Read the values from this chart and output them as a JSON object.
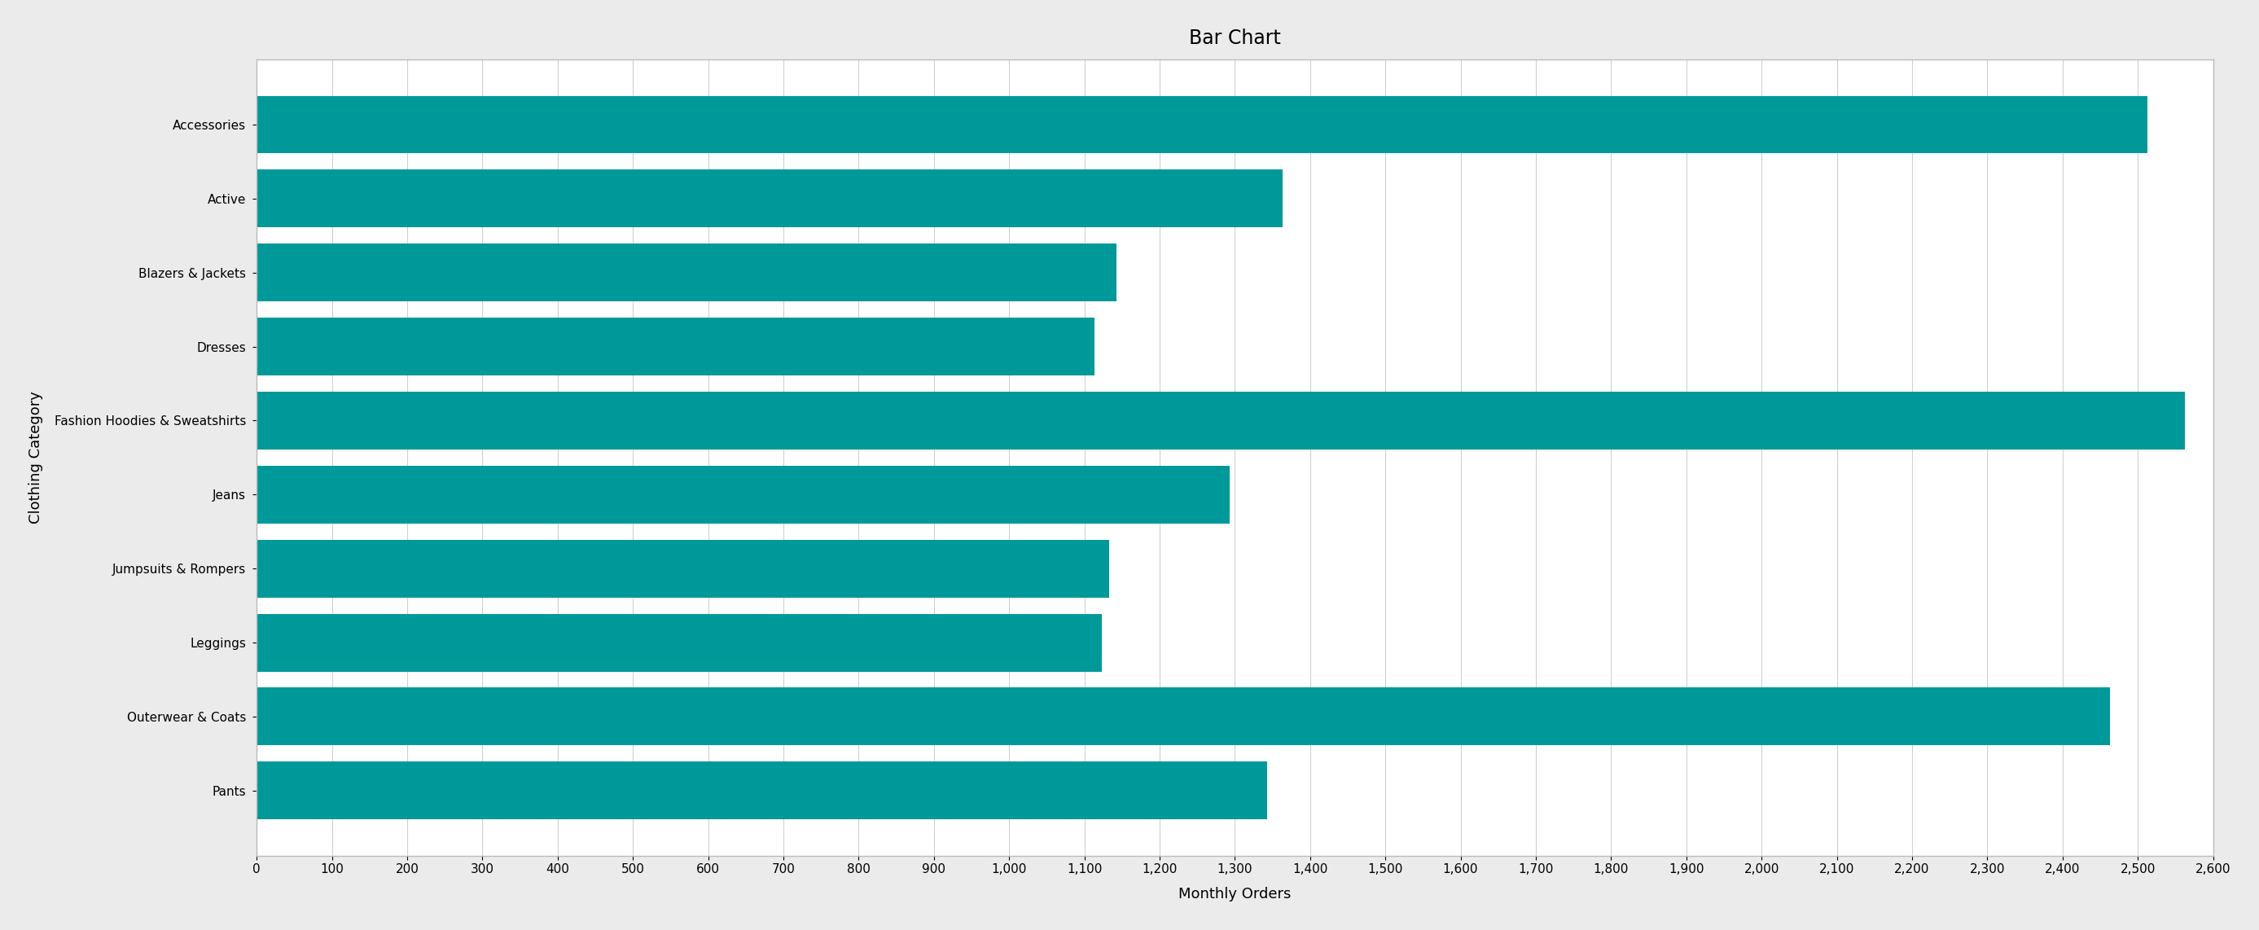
{
  "title": "Bar Chart",
  "xlabel": "Monthly Orders",
  "ylabel": "Clothing Category",
  "categories": [
    "Accessories",
    "Active",
    "Blazers & Jackets",
    "Dresses",
    "Fashion Hoodies & Sweatshirts",
    "Jeans",
    "Jumpsuits & Rompers",
    "Leggings",
    "Outerwear & Coats",
    "Pants"
  ],
  "values": [
    2513,
    1363,
    1143,
    1113,
    2563,
    1293,
    1133,
    1123,
    2463,
    1343
  ],
  "bar_color": "#009999",
  "background_color": "#ebebeb",
  "plot_background": "#ffffff",
  "xlim": [
    0,
    2600
  ],
  "xticks": [
    0,
    100,
    200,
    300,
    400,
    500,
    600,
    700,
    800,
    900,
    1000,
    1100,
    1200,
    1300,
    1400,
    1500,
    1600,
    1700,
    1800,
    1900,
    2000,
    2100,
    2200,
    2300,
    2400,
    2500,
    2600
  ],
  "grid_color": "#d0d0d0",
  "title_fontsize": 17,
  "label_fontsize": 13,
  "tick_fontsize": 11,
  "bar_height": 0.78
}
